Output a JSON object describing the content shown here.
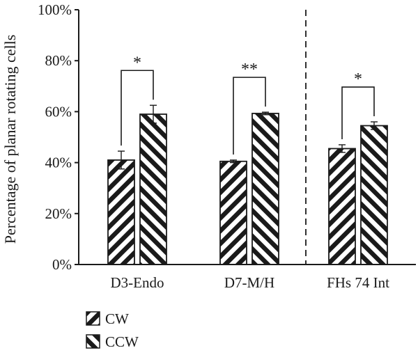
{
  "chart_data": {
    "type": "bar",
    "categories": [
      "D3-Endo",
      "D7-M/H",
      "FHs 74 Int"
    ],
    "series": [
      {
        "name": "CW",
        "values": [
          41,
          40.5,
          45.5
        ],
        "errors": [
          3.5,
          0.5,
          1.5
        ]
      },
      {
        "name": "CCW",
        "values": [
          59,
          59.3,
          54.5
        ],
        "errors": [
          3.5,
          0.5,
          1.5
        ]
      }
    ],
    "significance": [
      "*",
      "**",
      "*"
    ],
    "ylabel": "Percentage of planar rotating cells",
    "xlabel": "",
    "ylim": [
      0,
      100
    ],
    "yticks": [
      "0%",
      "20%",
      "40%",
      "60%",
      "80%",
      "100%"
    ],
    "divider_after_category": 1,
    "legend_position": "bottom-left",
    "grid": false,
    "colors": {
      "bar_stroke": "#1a1a1a",
      "hatch": "#1a1a1a",
      "background": "#ffffff"
    }
  }
}
